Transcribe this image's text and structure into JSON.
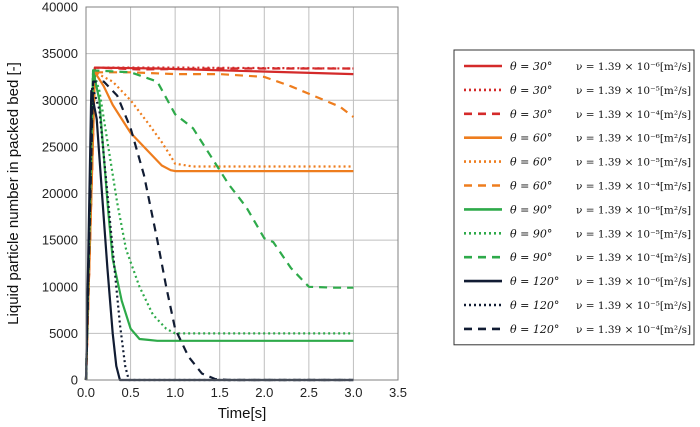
{
  "chart_data": {
    "type": "line",
    "title": "",
    "xlabel": "Time[s]",
    "ylabel": "Liquid particle number  in packed bed [-]",
    "xlim": [
      0,
      3.5
    ],
    "ylim": [
      0,
      40000
    ],
    "xticks": [
      "0.0",
      "0.5",
      "1.0",
      "1.5",
      "2.0",
      "2.5",
      "3.0",
      "3.5"
    ],
    "yticks": [
      "0",
      "5000",
      "10000",
      "15000",
      "20000",
      "25000",
      "30000",
      "35000",
      "40000"
    ],
    "grid": true,
    "legend_position": "right",
    "series": [
      {
        "theta": "θ = 30°",
        "nu": "ν = 1.39 × 10⁻⁶[m²/s]",
        "color": "#d42a2a",
        "dash": "solid",
        "x": [
          0,
          0.1,
          0.12,
          0.8,
          3.0
        ],
        "y": [
          0,
          33500,
          33500,
          33400,
          32800
        ]
      },
      {
        "theta": "θ = 30°",
        "nu": "ν = 1.39 × 10⁻⁵[m²/s]",
        "color": "#d42a2a",
        "dash": "dot",
        "x": [
          0,
          0.1,
          0.12,
          1.0,
          3.0
        ],
        "y": [
          0,
          33500,
          33500,
          33500,
          33400
        ]
      },
      {
        "theta": "θ = 30°",
        "nu": "ν = 1.39 × 10⁻⁴[m²/s]",
        "color": "#d42a2a",
        "dash": "dash",
        "x": [
          0,
          0.1,
          0.12,
          0.6,
          1.5,
          3.0
        ],
        "y": [
          0,
          33500,
          33500,
          33300,
          33400,
          33400
        ]
      },
      {
        "theta": "θ = 60°",
        "nu": "ν = 1.39 × 10⁻⁶[m²/s]",
        "color": "#ee7d1e",
        "dash": "solid",
        "x": [
          0,
          0.1,
          0.2,
          0.3,
          0.5,
          0.7,
          0.85,
          0.95,
          1.0,
          3.0
        ],
        "y": [
          0,
          33000,
          31500,
          29500,
          26500,
          24500,
          23000,
          22500,
          22400,
          22400
        ]
      },
      {
        "theta": "θ = 60°",
        "nu": "ν = 1.39 × 10⁻⁵[m²/s]",
        "color": "#ee7d1e",
        "dash": "dot",
        "x": [
          0,
          0.1,
          0.3,
          0.5,
          0.7,
          0.85,
          0.95,
          1.0,
          1.2,
          3.0
        ],
        "y": [
          0,
          33000,
          32000,
          30000,
          27500,
          25500,
          24000,
          23200,
          22900,
          22900
        ]
      },
      {
        "theta": "θ = 60°",
        "nu": "ν = 1.39 × 10⁻⁴[m²/s]",
        "color": "#ee7d1e",
        "dash": "dash",
        "x": [
          0,
          0.1,
          0.5,
          1.0,
          1.5,
          2.0,
          2.3,
          2.6,
          2.85,
          3.0
        ],
        "y": [
          0,
          33000,
          33000,
          32800,
          32800,
          32500,
          31500,
          30300,
          29300,
          28200
        ]
      },
      {
        "theta": "θ = 90°",
        "nu": "ν = 1.39 × 10⁻⁶[m²/s]",
        "color": "#2eaa4a",
        "dash": "solid",
        "x": [
          0,
          0.08,
          0.15,
          0.2,
          0.25,
          0.3,
          0.4,
          0.5,
          0.6,
          0.7,
          0.8,
          3.0
        ],
        "y": [
          0,
          33200,
          30000,
          24000,
          18000,
          13000,
          8500,
          5500,
          4400,
          4300,
          4200,
          4200
        ]
      },
      {
        "theta": "θ = 90°",
        "nu": "ν = 1.39 × 10⁻⁵[m²/s]",
        "color": "#2eaa4a",
        "dash": "dot",
        "x": [
          0,
          0.08,
          0.15,
          0.25,
          0.35,
          0.45,
          0.6,
          0.75,
          0.9,
          1.0,
          3.0
        ],
        "y": [
          0,
          33200,
          31000,
          25000,
          19000,
          14000,
          10000,
          7000,
          5500,
          5000,
          5000
        ]
      },
      {
        "theta": "θ = 90°",
        "nu": "ν = 1.39 × 10⁻⁴[m²/s]",
        "color": "#2eaa4a",
        "dash": "dash",
        "x": [
          0,
          0.08,
          0.5,
          0.8,
          1.0,
          1.2,
          1.4,
          1.6,
          1.8,
          2.0,
          2.1,
          2.3,
          2.5,
          2.8,
          3.0
        ],
        "y": [
          0,
          33200,
          33000,
          32000,
          28500,
          27000,
          24000,
          21000,
          18500,
          15200,
          14800,
          12000,
          10000,
          9900,
          9900
        ]
      },
      {
        "theta": "θ = 120°",
        "nu": "ν = 1.39 × 10⁻⁶[m²/s]",
        "color": "#111c33",
        "dash": "solid",
        "x": [
          0,
          0.06,
          0.12,
          0.18,
          0.24,
          0.3,
          0.34,
          0.38,
          3.0
        ],
        "y": [
          0,
          31000,
          28000,
          20000,
          12000,
          5000,
          1500,
          0,
          0
        ]
      },
      {
        "theta": "θ = 120°",
        "nu": "ν = 1.39 × 10⁻⁵[m²/s]",
        "color": "#111c33",
        "dash": "dot",
        "x": [
          0,
          0.07,
          0.15,
          0.22,
          0.3,
          0.38,
          0.44,
          0.48,
          3.0
        ],
        "y": [
          0,
          31500,
          29000,
          22000,
          14000,
          6000,
          1500,
          0,
          0
        ]
      },
      {
        "theta": "θ = 120°",
        "nu": "ν = 1.39 × 10⁻⁴[m²/s]",
        "color": "#111c33",
        "dash": "dash",
        "x": [
          0,
          0.08,
          0.2,
          0.35,
          0.5,
          0.65,
          0.8,
          0.9,
          1.0,
          1.15,
          1.3,
          1.45,
          1.6,
          3.0
        ],
        "y": [
          0,
          32000,
          32000,
          30500,
          27000,
          22000,
          15000,
          10000,
          5500,
          2500,
          700,
          100,
          0,
          0
        ]
      }
    ]
  }
}
